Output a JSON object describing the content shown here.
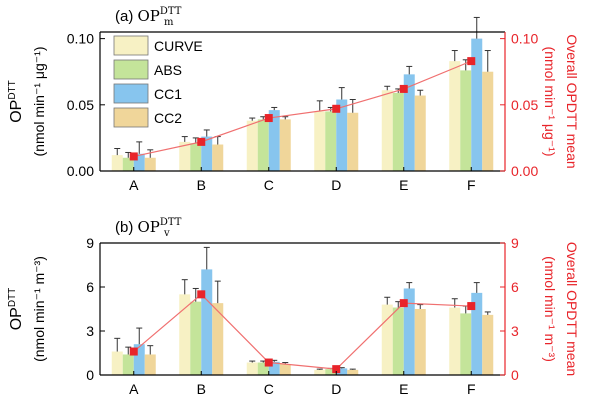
{
  "chart_data": [
    {
      "type": "bar",
      "panel_label": "(a)",
      "title_base": "OP",
      "title_sub": "m",
      "title_sup": "DTT",
      "categories": [
        "A",
        "B",
        "C",
        "D",
        "E",
        "F"
      ],
      "series": [
        {
          "name": "CURVE",
          "values": [
            0.012,
            0.022,
            0.038,
            0.045,
            0.061,
            0.083
          ],
          "errors": [
            0.005,
            0.004,
            0.002,
            0.008,
            0.003,
            0.008
          ],
          "color": "#f7f1c4"
        },
        {
          "name": "ABS",
          "values": [
            0.01,
            0.021,
            0.039,
            0.045,
            0.059,
            0.076
          ],
          "errors": [
            0.004,
            0.004,
            0.002,
            0.003,
            0.003,
            0.008
          ],
          "color": "#c4e49a"
        },
        {
          "name": "CC1",
          "values": [
            0.013,
            0.026,
            0.046,
            0.054,
            0.073,
            0.1
          ],
          "errors": [
            0.009,
            0.005,
            0.002,
            0.009,
            0.006,
            0.016
          ],
          "color": "#87c5ee"
        },
        {
          "name": "CC2",
          "values": [
            0.01,
            0.02,
            0.039,
            0.044,
            0.057,
            0.075
          ],
          "errors": [
            0.006,
            0.006,
            0.002,
            0.01,
            0.004,
            0.016
          ],
          "color": "#f0d69a"
        }
      ],
      "overall_mean": {
        "values": [
          0.011,
          0.022,
          0.04,
          0.047,
          0.062,
          0.083
        ],
        "color": "#e8242a"
      },
      "ylabel_left_main": "OP",
      "ylabel_left_sup": "DTT",
      "ylabel_left_unit": "(nmol min⁻¹ μg⁻¹)",
      "ylabel_right_1": "Overall  OPDTT mean",
      "ylabel_right_2": "(nmol min⁻¹ μg⁻¹)",
      "ylim": [
        0,
        0.105
      ],
      "yticks": [
        "0.00",
        "0.05",
        "0.10"
      ],
      "ytick_values": [
        0,
        0.05,
        0.1
      ],
      "legend_position": "top-left"
    },
    {
      "type": "bar",
      "panel_label": "(b)",
      "title_base": "OP",
      "title_sub": "v",
      "title_sup": "DTT",
      "categories": [
        "A",
        "B",
        "C",
        "D",
        "E",
        "F"
      ],
      "series": [
        {
          "name": "CURVE",
          "values": [
            1.6,
            5.5,
            0.85,
            0.35,
            4.8,
            4.6
          ],
          "errors": [
            0.9,
            1.0,
            0.1,
            0.05,
            0.5,
            0.6
          ],
          "color": "#f7f1c4"
        },
        {
          "name": "ABS",
          "values": [
            1.4,
            5.0,
            0.85,
            0.4,
            4.6,
            4.2
          ],
          "errors": [
            0.5,
            0.9,
            0.1,
            0.05,
            0.4,
            0.5
          ],
          "color": "#c4e49a"
        },
        {
          "name": "CC1",
          "values": [
            2.1,
            7.2,
            0.9,
            0.45,
            5.9,
            5.6
          ],
          "errors": [
            1.1,
            1.5,
            0.1,
            0.05,
            0.4,
            0.7
          ],
          "color": "#87c5ee"
        },
        {
          "name": "CC2",
          "values": [
            1.4,
            4.9,
            0.75,
            0.35,
            4.5,
            4.1
          ],
          "errors": [
            0.6,
            1.5,
            0.1,
            0.05,
            0.3,
            0.2
          ],
          "color": "#f0d69a"
        }
      ],
      "overall_mean": {
        "values": [
          1.6,
          5.5,
          0.85,
          0.4,
          4.9,
          4.7
        ],
        "color": "#e8242a"
      },
      "ylabel_left_main": "OP",
      "ylabel_left_sup": "DTT",
      "ylabel_left_unit": "(nmol min⁻¹ m⁻³)",
      "ylabel_right_1": "Overall  OPDTT mean",
      "ylabel_right_2": "(nmol min⁻¹ m⁻³)",
      "ylim": [
        0,
        9
      ],
      "yticks": [
        "0",
        "3",
        "6",
        "9"
      ],
      "ytick_values": [
        0,
        3,
        6,
        9
      ],
      "legend_position": "none"
    }
  ]
}
